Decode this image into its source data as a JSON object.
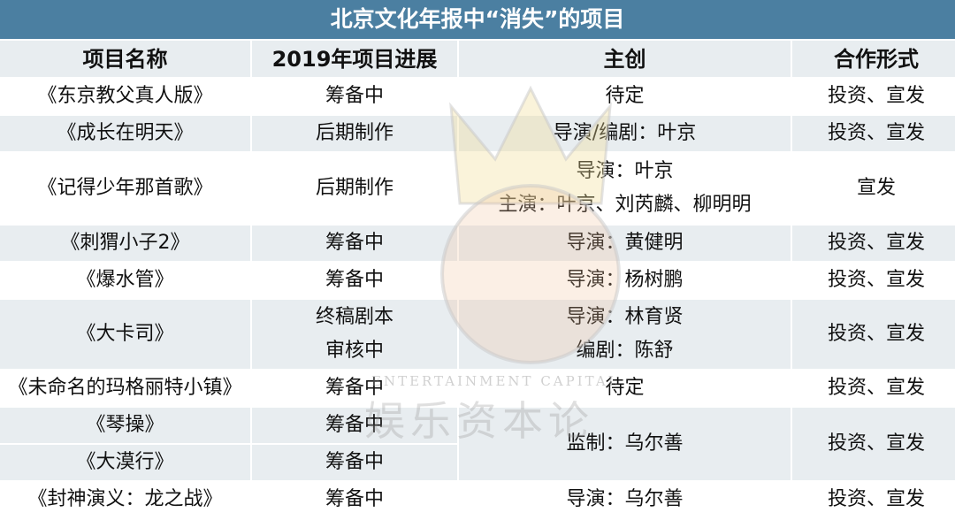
{
  "title": "北京文化年报中“消失”的项目",
  "colors": {
    "title_bg": "#4b7fa1",
    "row_alt_bg": "#e8edf0"
  },
  "headers": [
    "项目名称",
    "2019年项目进展",
    "主创",
    "合作形式"
  ],
  "rows": [
    {
      "name": "《东京教父真人版》",
      "progress": "筹备中",
      "creators": [
        "待定"
      ],
      "cooperation": "投资、宣发"
    },
    {
      "name": "《成长在明天》",
      "progress": "后期制作",
      "creators": [
        "导演/编剧：叶京"
      ],
      "cooperation": "投资、宣发"
    },
    {
      "name": "《记得少年那首歌》",
      "progress": "后期制作",
      "creators": [
        "导演：叶京",
        "主演：叶京、刘芮麟、柳明明"
      ],
      "cooperation": "宣发"
    },
    {
      "name": "《刺猬小子2》",
      "progress": "筹备中",
      "creators": [
        "导演：黄健明"
      ],
      "cooperation": "投资、宣发"
    },
    {
      "name": "《爆水管》",
      "progress": "筹备中",
      "creators": [
        "导演：杨树鹏"
      ],
      "cooperation": "投资、宣发"
    },
    {
      "name": "《大卡司》",
      "progress_lines": [
        "终稿剧本",
        "审核中"
      ],
      "creators": [
        "导演：林育贤",
        "编剧：陈舒"
      ],
      "cooperation": "投资、宣发"
    },
    {
      "name": "《未命名的玛格丽特小镇》",
      "progress": "筹备中",
      "creators": [
        "待定"
      ],
      "cooperation": "投资、宣发"
    },
    {
      "name": "《琴操》",
      "progress": "筹备中"
    },
    {
      "name": "《大漠行》",
      "progress": "筹备中"
    },
    {
      "name": "《封神演义：龙之战》",
      "progress": "筹备中",
      "creators": [
        "导演：乌尔善"
      ],
      "cooperation": "投资、宣发"
    }
  ],
  "merged_group": {
    "creators": "监制：乌尔善",
    "cooperation": "投资、宣发"
  },
  "watermark": {
    "en": "ENTERTAINMENT CAPITAL",
    "zh": "娱乐资本论"
  }
}
